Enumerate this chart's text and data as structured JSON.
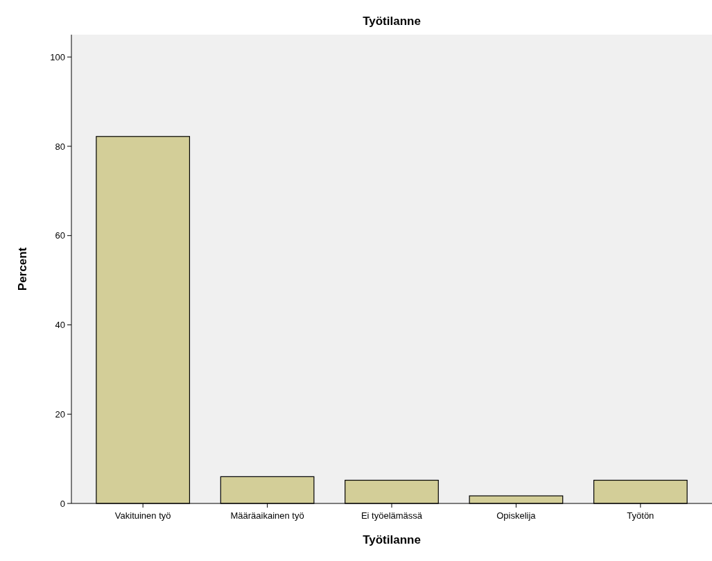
{
  "chart_data": {
    "type": "bar",
    "title": "Työtilanne",
    "xlabel": "Työtilanne",
    "ylabel": "Percent",
    "categories": [
      "Vakituinen työ",
      "Määräaikainen työ",
      "Ei työelämässä",
      "Opiskelija",
      "Työtön"
    ],
    "values": [
      82.2,
      6.0,
      5.2,
      1.7,
      5.2
    ],
    "color": "#d3ce98",
    "ylim": [
      0,
      105
    ],
    "yticks": [
      0,
      20,
      40,
      60,
      80,
      100
    ],
    "grid": false
  }
}
